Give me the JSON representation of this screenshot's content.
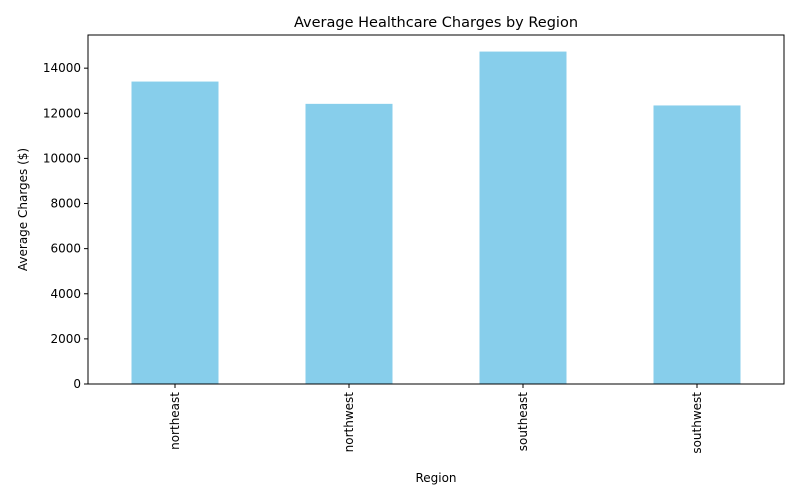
{
  "chart_data": {
    "type": "bar",
    "title": "Average Healthcare Charges by Region",
    "xlabel": "Region",
    "ylabel": "Average Charges ($)",
    "categories": [
      "northeast",
      "northwest",
      "southeast",
      "southwest"
    ],
    "values": [
      13406,
      12418,
      14735,
      12347
    ],
    "ylim": [
      0,
      15470
    ],
    "yticks": [
      0,
      2000,
      4000,
      6000,
      8000,
      10000,
      12000,
      14000
    ],
    "grid": false,
    "legend": "none",
    "colors": {
      "bar": "#87ceeb",
      "axis": "#000000",
      "text": "#000000",
      "background": "#ffffff"
    }
  }
}
